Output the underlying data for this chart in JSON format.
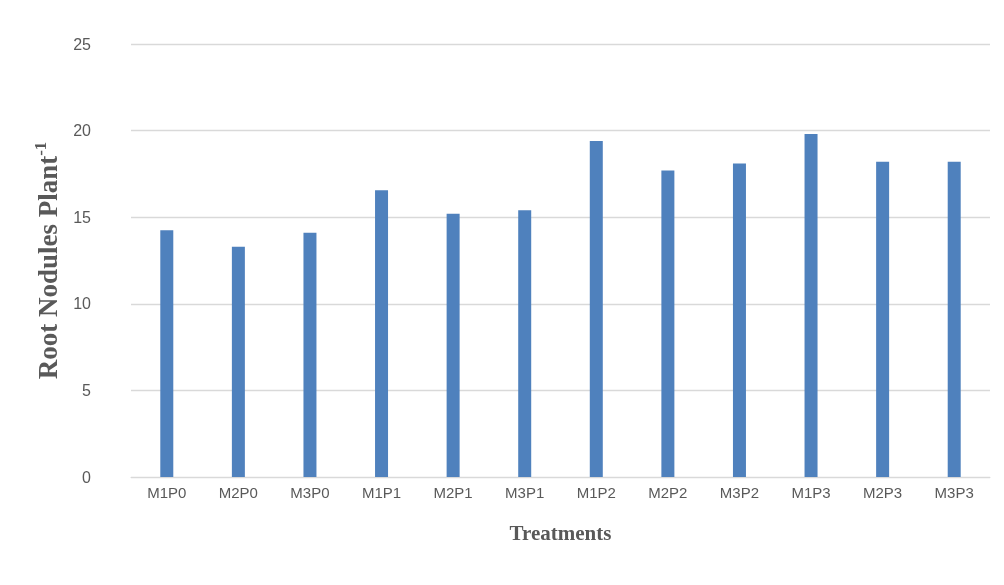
{
  "chart_data": {
    "type": "bar",
    "xlabel": "Treatments",
    "ylabel": "Root Nodules Plant$^{-1}$",
    "categories": [
      "M1P0",
      "M2P0",
      "M3P0",
      "M1P1",
      "M2P1",
      "M3P1",
      "M1P2",
      "M2P2",
      "M3P2",
      "M1P3",
      "M2P3",
      "M3P3"
    ],
    "values": [
      14.25,
      13.3,
      14.1,
      16.55,
      15.2,
      15.4,
      19.4,
      17.7,
      18.1,
      19.8,
      18.2,
      18.2
    ],
    "color": "#4f81bd",
    "ylim": [
      0,
      25
    ],
    "yticks": [
      0,
      5,
      10,
      15,
      20,
      25
    ],
    "grid": "y"
  }
}
